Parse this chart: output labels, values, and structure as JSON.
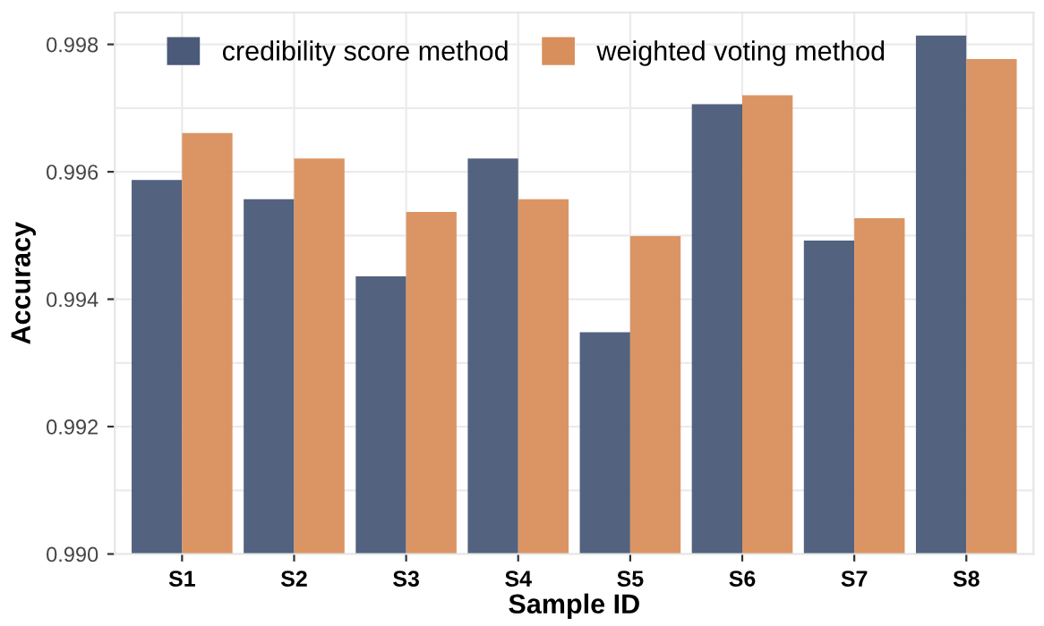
{
  "chart_data": {
    "type": "bar",
    "xlabel": "Sample ID",
    "ylabel": "Accuracy",
    "categories": [
      "S1",
      "S2",
      "S3",
      "S4",
      "S5",
      "S6",
      "S7",
      "S8"
    ],
    "series": [
      {
        "name": "credibility score method",
        "color": "#4a5a78",
        "values": [
          0.99587,
          0.99557,
          0.99436,
          0.99621,
          0.99348,
          0.99706,
          0.99492,
          0.99814
        ]
      },
      {
        "name": "weighted voting method",
        "color": "#d98f5c",
        "values": [
          0.99661,
          0.99621,
          0.99537,
          0.99557,
          0.99499,
          0.9972,
          0.99527,
          0.99777
        ]
      }
    ],
    "ylim": [
      0.99,
      0.9985
    ],
    "yticks": [
      {
        "value": 0.99,
        "label": "0.990"
      },
      0.992,
      0.994,
      0.996,
      0.998
    ],
    "grid": true,
    "legend": "top left"
  }
}
